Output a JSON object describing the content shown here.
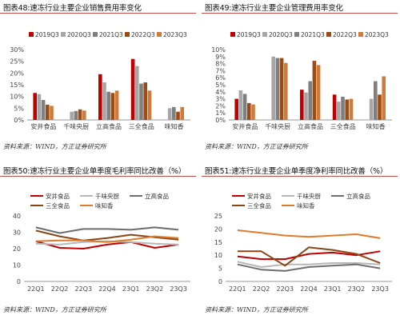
{
  "colors": {
    "c2019": "#c00000",
    "c2020": "#a6a6a6",
    "c2021": "#7f7f7f",
    "c2022": "#9c4b12",
    "c2023": "#d17a3a",
    "s_anjing": "#c00000",
    "s_qianwei": "#b8b8b8",
    "s_ligao": "#6d6d6d",
    "s_sanquan": "#8b4513",
    "s_weizhi": "#e07b2a"
  },
  "panels": [
    {
      "title": "图表48:速冻行业主要企业销售费用率变化",
      "note": "资料来源：WIND，方正证券研究所"
    },
    {
      "title": "图表49:速冻行业主要企业管理费用率变化",
      "note": "资料来源：WIND，方正证券研究所"
    },
    {
      "title": "图表50:速冻行业主要企业单季度毛利率同比改善（%）",
      "note": "资料来源：WIND，方正证券研究所"
    },
    {
      "title": "图表51:速冻行业主要企业单季度净利率同比改善（%）",
      "note": "资料来源：WIND，方正证券研究所"
    }
  ],
  "chart_data": [
    {
      "type": "bar",
      "categories": [
        "安井食品",
        "千味央厨",
        "立高食品",
        "三全食品",
        "味知香"
      ],
      "ylim": [
        0,
        30
      ],
      "ytick_step": 5,
      "ytick_format": "percent",
      "series": [
        {
          "name": "2019Q3",
          "color_key": "c2019",
          "values": [
            11.5,
            null,
            19.5,
            26.0,
            null
          ]
        },
        {
          "name": "2020Q3",
          "color_key": "c2020",
          "values": [
            11.0,
            3.5,
            16.0,
            23.0,
            5.0
          ]
        },
        {
          "name": "2021Q3",
          "color_key": "c2021",
          "values": [
            8.5,
            3.8,
            12.0,
            15.5,
            5.5
          ]
        },
        {
          "name": "2022Q3",
          "color_key": "c2022",
          "values": [
            6.5,
            4.5,
            11.5,
            16.0,
            3.5
          ]
        },
        {
          "name": "2023Q3",
          "color_key": "c2023",
          "values": [
            6.0,
            4.0,
            12.5,
            12.5,
            5.5
          ]
        }
      ]
    },
    {
      "type": "bar",
      "categories": [
        "安井食品",
        "千味央厨",
        "立高食品",
        "三全食品",
        "味知香"
      ],
      "ylim": [
        0,
        10
      ],
      "ytick_step": 1,
      "ytick_format": "percent",
      "series": [
        {
          "name": "2019Q3",
          "color_key": "c2019",
          "values": [
            3.0,
            null,
            4.3,
            3.6,
            null
          ]
        },
        {
          "name": "2020Q3",
          "color_key": "c2020",
          "values": [
            4.2,
            9.0,
            3.9,
            2.6,
            3.0
          ]
        },
        {
          "name": "2021Q3",
          "color_key": "c2021",
          "values": [
            3.7,
            8.8,
            5.5,
            3.3,
            5.5
          ]
        },
        {
          "name": "2022Q3",
          "color_key": "c2022",
          "values": [
            2.4,
            8.8,
            8.4,
            2.9,
            3.6
          ]
        },
        {
          "name": "2023Q3",
          "color_key": "c2023",
          "values": [
            2.2,
            8.1,
            7.8,
            3.0,
            6.2
          ]
        }
      ]
    },
    {
      "type": "line",
      "categories": [
        "22Q1",
        "22Q2",
        "22Q3",
        "22Q4",
        "23Q1",
        "23Q2",
        "23Q3"
      ],
      "ylim": [
        0,
        40
      ],
      "ytick_step": 10,
      "series": [
        {
          "name": "安井食品",
          "color_key": "s_anjing",
          "values": [
            24.5,
            20.5,
            20.0,
            22.5,
            24.0,
            20.5,
            22.5
          ]
        },
        {
          "name": "千味央厨",
          "color_key": "s_qianwei",
          "values": [
            23.0,
            22.5,
            24.0,
            24.5,
            24.0,
            23.0,
            22.5
          ]
        },
        {
          "name": "立高食品",
          "color_key": "s_ligao",
          "values": [
            33.0,
            29.5,
            32.0,
            32.0,
            31.5,
            33.0,
            31.5
          ]
        },
        {
          "name": "三全食品",
          "color_key": "s_sanquan",
          "values": [
            31.0,
            27.5,
            25.0,
            26.5,
            28.5,
            27.0,
            25.5
          ]
        },
        {
          "name": "味知香",
          "color_key": "s_weizhi",
          "values": [
            24.5,
            25.0,
            25.0,
            24.0,
            25.5,
            27.5,
            26.5
          ]
        }
      ]
    },
    {
      "type": "line",
      "categories": [
        "22Q1",
        "22Q2",
        "22Q3",
        "22Q4",
        "23Q1",
        "23Q2",
        "23Q3"
      ],
      "ylim": [
        0,
        25
      ],
      "ytick_step": 5,
      "series": [
        {
          "name": "安井食品",
          "color_key": "s_anjing",
          "values": [
            9.5,
            8.5,
            8.5,
            10.5,
            11.0,
            10.0,
            11.5
          ]
        },
        {
          "name": "千味央厨",
          "color_key": "s_qianwei",
          "values": [
            7.5,
            5.5,
            6.5,
            6.5,
            7.0,
            7.0,
            6.5
          ]
        },
        {
          "name": "立高食品",
          "color_key": "s_ligao",
          "values": [
            6.5,
            4.5,
            4.0,
            5.5,
            6.0,
            6.5,
            5.0
          ]
        },
        {
          "name": "三全食品",
          "color_key": "s_sanquan",
          "values": [
            11.5,
            11.5,
            6.0,
            13.0,
            12.0,
            10.5,
            7.0
          ]
        },
        {
          "name": "味知香",
          "color_key": "s_weizhi",
          "values": [
            19.5,
            18.5,
            17.5,
            17.0,
            17.5,
            18.0,
            16.5
          ]
        }
      ]
    }
  ]
}
